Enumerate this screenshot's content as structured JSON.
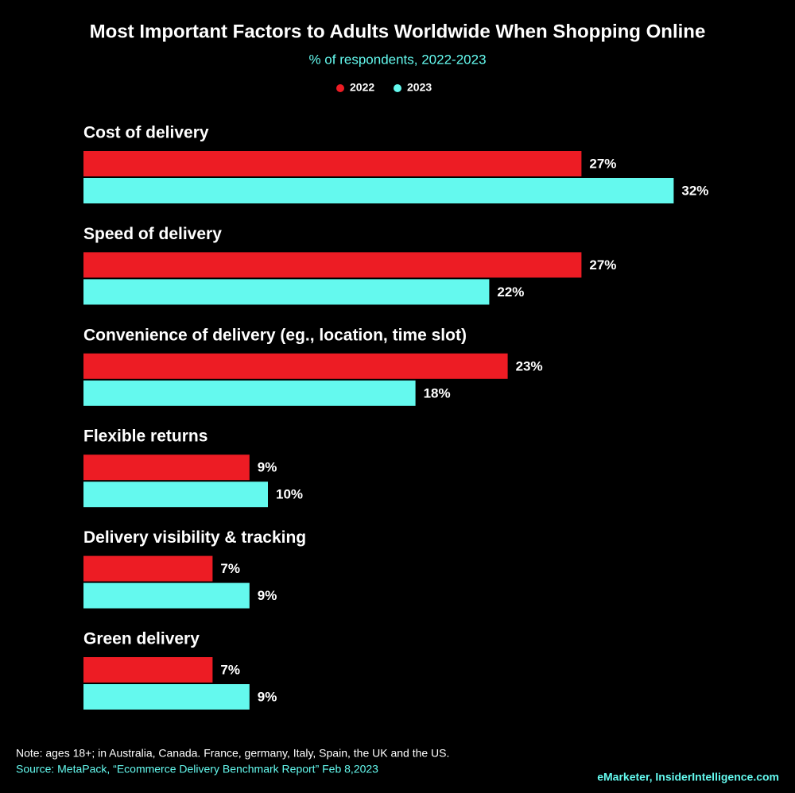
{
  "chart_data": {
    "type": "bar",
    "orientation": "horizontal",
    "title": "Most Important Factors to Adults Worldwide When Shopping Online",
    "subtitle": "% of respondents, 2022-2023",
    "categories": [
      "Cost of delivery",
      "Speed of delivery",
      "Convenience of delivery (eg., location, time slot)",
      "Flexible returns",
      "Delivery visibility & tracking",
      "Green delivery"
    ],
    "series": [
      {
        "name": "2022",
        "color": "#ed1c24",
        "values": [
          27,
          27,
          23,
          9,
          7,
          7
        ],
        "value_labels": [
          "27%",
          "27%",
          "23%",
          "9%",
          "7%",
          "7%"
        ]
      },
      {
        "name": "2023",
        "color": "#64f9ee",
        "values": [
          32,
          22,
          18,
          10,
          9,
          9
        ],
        "value_labels": [
          "32%",
          "22%",
          "18%",
          "10%",
          "9%",
          "9%"
        ]
      }
    ],
    "note": "Note: ages 18+; in Australia, Canada. France, germany, Italy, Spain, the UK and the US.",
    "source": "Source: MetaPack, “Ecommerce Delivery Benchmark Report” Feb 8,2023",
    "credit": "eMarketer, InsiderIntelligence.com"
  }
}
